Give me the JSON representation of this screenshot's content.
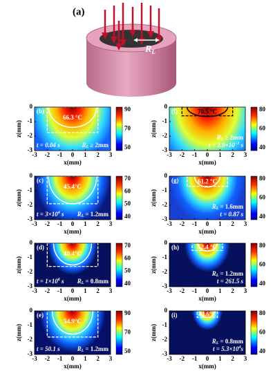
{
  "figure_a": {
    "label": "(a)",
    "radius_symbol": "R",
    "radius_subscript": "L"
  },
  "axes": {
    "x_label": "x(mm)",
    "y_label": "z(mm)",
    "x_ticks": [
      -3,
      -2,
      -1,
      0,
      1,
      2,
      3
    ],
    "y_ticks": [
      0,
      -1,
      -2,
      -3
    ]
  },
  "panels": [
    {
      "label": "(b)",
      "temperature": "66.3 °C",
      "time": [
        "t = 0.04 s"
      ],
      "radius_value": "≥ 2mm",
      "colorbar_ticks": [
        50,
        70,
        90
      ]
    },
    {
      "label": "(c)",
      "temperature": "45.4°C",
      "time": [
        "t = 3×10",
        "4",
        " s"
      ],
      "radius_value": "= 1.2mm",
      "colorbar_ticks": [
        40,
        50,
        60,
        70
      ]
    },
    {
      "label": "(d)",
      "temperature": "40.4°C",
      "time": [
        "t = 1×10",
        "6",
        " s"
      ],
      "radius_value": "= 0.8mm",
      "colorbar_ticks": [
        40,
        50,
        60,
        70
      ]
    },
    {
      "label": "(e)",
      "temperature": "54.9°C",
      "time": [
        "t = 50.1 s"
      ],
      "radius_value": "= 1.2mm",
      "colorbar_ticks": [
        50,
        70,
        90
      ]
    },
    {
      "label": "(f)",
      "temperature": "70.5 °C",
      "time": [
        "t = 2.9×10",
        "−3",
        " s"
      ],
      "radius_value": "≥ 2mm",
      "colorbar_ticks": [
        40,
        60,
        80
      ]
    },
    {
      "label": "(g)",
      "temperature": "61.2 °C",
      "time": [
        "t = 0.87 s"
      ],
      "radius_value": "= 1.6mm",
      "colorbar_ticks": [
        40,
        60,
        80
      ]
    },
    {
      "label": "(h)",
      "temperature": "52.4 °C",
      "time": [
        "t = 261.5 s"
      ],
      "radius_value": "= 1.2mm",
      "colorbar_ticks": [
        40,
        60,
        80
      ]
    },
    {
      "label": "(i)",
      "temperature": "44.6°C",
      "time": [
        "t = 5.3×10",
        "4",
        "s"
      ],
      "radius_value": "= 0.8mm",
      "colorbar_ticks": [
        40,
        60,
        80
      ]
    }
  ]
}
